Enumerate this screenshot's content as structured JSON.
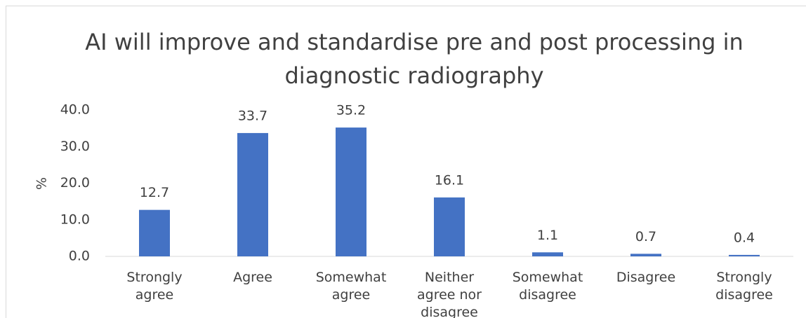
{
  "chart_data": {
    "type": "bar",
    "title": "AI will improve and standardise pre and post processing in diagnostic radiography",
    "y_label": "%",
    "categories": [
      "Strongly agree",
      "Agree",
      "Somewhat agree",
      "Neither agree nor disagree",
      "Somewhat disagree",
      "Disagree",
      "Strongly disagree"
    ],
    "values": [
      12.7,
      33.7,
      35.2,
      16.1,
      1.1,
      0.7,
      0.4
    ],
    "color": "#4472c4",
    "ylim": [
      0,
      40
    ],
    "yticks": [
      {
        "value": 0,
        "label": "0.0"
      },
      {
        "value": 10,
        "label": "10.0"
      },
      {
        "value": 20,
        "label": "20.0"
      },
      {
        "value": 30,
        "label": "30.0"
      },
      {
        "value": 40,
        "label": "40.0"
      }
    ],
    "grid": false
  }
}
